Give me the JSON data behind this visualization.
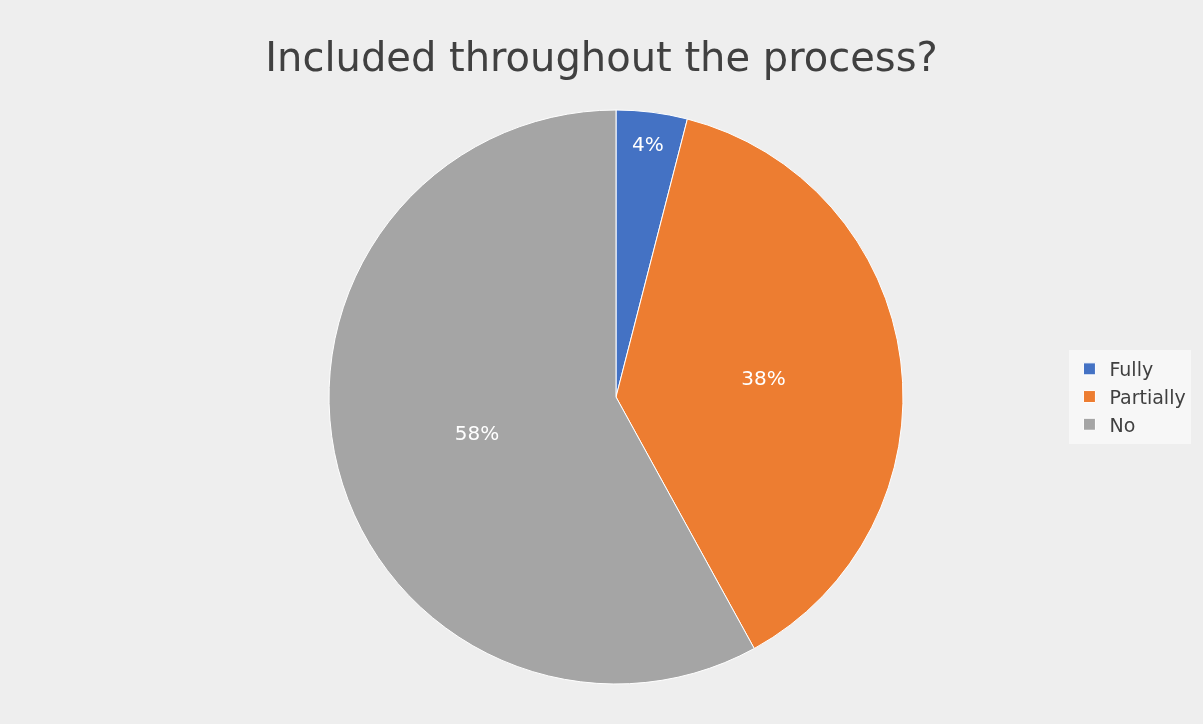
{
  "chart_data": {
    "type": "pie",
    "title": "Included throughout the process?",
    "categories": [
      "Fully",
      "Partially",
      "No"
    ],
    "values": [
      4,
      38,
      58
    ],
    "colors": [
      "#4472c4",
      "#ed7d31",
      "#a5a5a5"
    ],
    "value_labels": [
      "4%",
      "38%",
      "58%"
    ],
    "legend": "right"
  }
}
